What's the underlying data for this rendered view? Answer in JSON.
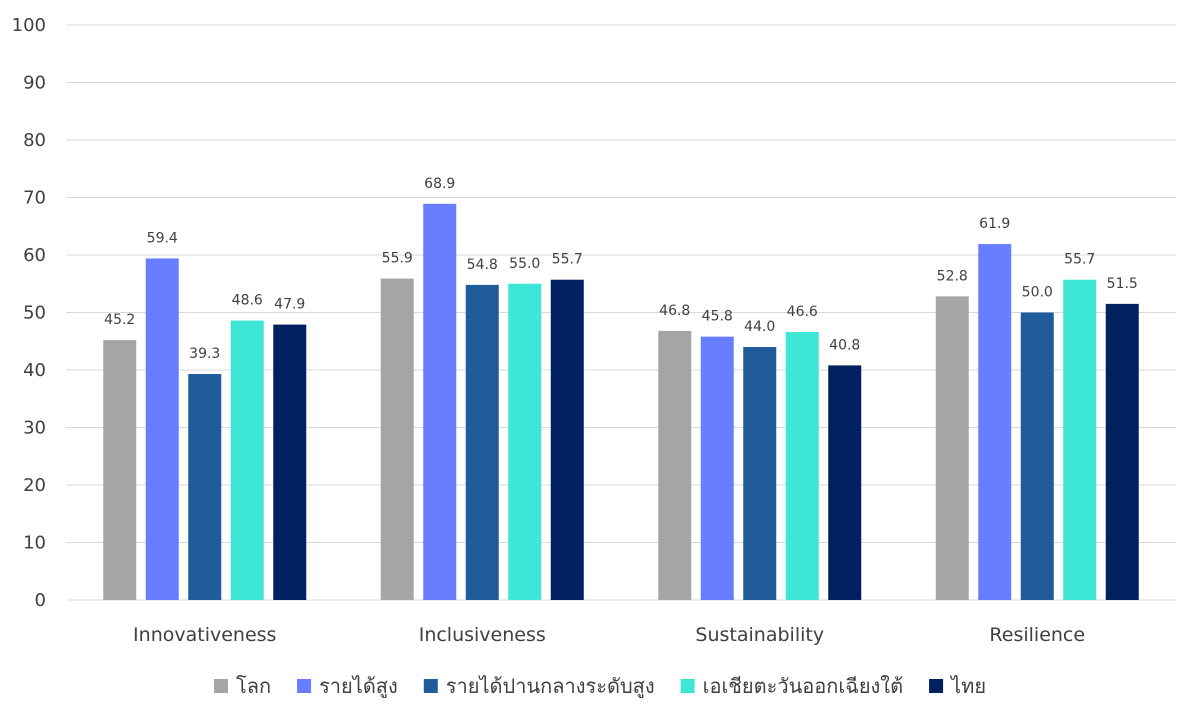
{
  "chart_data": {
    "type": "bar",
    "categories": [
      "Innovativeness",
      "Inclusiveness",
      "Sustainability",
      "Resilience"
    ],
    "series": [
      {
        "name": "โลก",
        "color": "#a5a5a5",
        "values": [
          45.2,
          55.9,
          46.8,
          52.8
        ]
      },
      {
        "name": "รายได้สูง",
        "color": "#667eff",
        "values": [
          59.4,
          68.9,
          45.8,
          61.9
        ]
      },
      {
        "name": "รายได้ปานกลางระดับสูง",
        "color": "#1f5c99",
        "values": [
          39.3,
          54.8,
          44.0,
          50.0
        ]
      },
      {
        "name": "เอเชียตะวันออกเฉียงใต้",
        "color": "#3ee6d8",
        "values": [
          48.6,
          55.0,
          46.6,
          55.7
        ]
      },
      {
        "name": "ไทย",
        "color": "#002060",
        "values": [
          47.9,
          55.7,
          40.8,
          51.5
        ]
      }
    ],
    "yticks": [
      "0",
      "10",
      "20",
      "30",
      "40",
      "50",
      "60",
      "70",
      "80",
      "90",
      "100"
    ],
    "ylim": [
      0,
      100
    ],
    "grid": true,
    "legend_position": "bottom",
    "data_labels": true,
    "title": "",
    "xlabel": "",
    "ylabel": ""
  }
}
